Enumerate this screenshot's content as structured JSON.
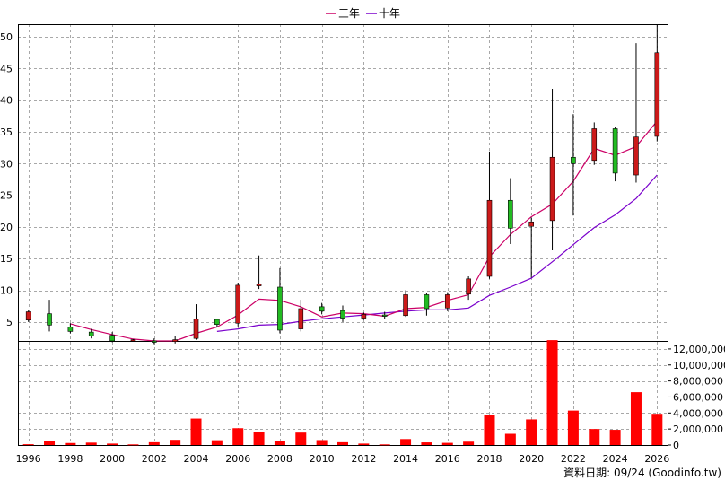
{
  "chart_data": {
    "type": "candlestick",
    "legend": [
      {
        "name": "三年",
        "color": "#cc0066"
      },
      {
        "name": "十年",
        "color": "#7a00cc"
      }
    ],
    "legend_position": "top",
    "footer": "資料日期: 09/24  (Goodinfo.tw)",
    "colors": {
      "up": "#cc1a1a",
      "down": "#22bb22",
      "volume": "#ff0000",
      "ma3": "#cc0066",
      "ma10": "#7a00cc"
    },
    "grid": true,
    "price_axis": {
      "range": [
        2,
        52
      ],
      "ticks": [
        5,
        10,
        15,
        20,
        25,
        30,
        35,
        40,
        45,
        50
      ]
    },
    "volume_axis": {
      "range": [
        0,
        13000000
      ],
      "ticks": [
        0,
        2000000,
        4000000,
        6000000,
        8000000,
        10000000,
        12000000
      ]
    },
    "x_ticks": [
      1996,
      1998,
      2000,
      2002,
      2004,
      2006,
      2008,
      2010,
      2012,
      2014,
      2016,
      2018,
      2020,
      2022,
      2024,
      2026
    ],
    "x_range": [
      1995.5,
      2026.5
    ],
    "candles": [
      {
        "year": 1996,
        "open": 5.3,
        "close": 6.6,
        "high": 6.8,
        "low": 5.0
      },
      {
        "year": 1997,
        "open": 6.3,
        "close": 4.5,
        "high": 8.5,
        "low": 3.5
      },
      {
        "year": 1998,
        "open": 4.2,
        "close": 3.5,
        "high": 4.8,
        "low": 3.2
      },
      {
        "year": 1999,
        "open": 3.4,
        "close": 2.8,
        "high": 3.9,
        "low": 2.4
      },
      {
        "year": 2000,
        "open": 2.9,
        "close": 2.0,
        "high": 3.4,
        "low": 1.8
      },
      {
        "year": 2001,
        "open": 2.1,
        "close": 2.2,
        "high": 2.3,
        "low": 2.0
      },
      {
        "year": 2002,
        "open": 2.0,
        "close": 1.9,
        "high": 2.4,
        "low": 1.5
      },
      {
        "year": 2003,
        "open": 1.9,
        "close": 2.2,
        "high": 2.8,
        "low": 1.6
      },
      {
        "year": 2004,
        "open": 2.4,
        "close": 5.5,
        "high": 7.8,
        "low": 2.2
      },
      {
        "year": 2005,
        "open": 5.4,
        "close": 4.6,
        "high": 5.5,
        "low": 4.2
      },
      {
        "year": 2006,
        "open": 4.8,
        "close": 10.8,
        "high": 11.2,
        "low": 4.3
      },
      {
        "year": 2007,
        "open": 10.7,
        "close": 11.0,
        "high": 15.5,
        "low": 10.2
      },
      {
        "year": 2008,
        "open": 10.5,
        "close": 3.7,
        "high": 13.5,
        "low": 3.2
      },
      {
        "year": 2009,
        "open": 3.9,
        "close": 7.1,
        "high": 8.5,
        "low": 3.5
      },
      {
        "year": 2010,
        "open": 7.4,
        "close": 6.7,
        "high": 8.0,
        "low": 6.2
      },
      {
        "year": 2011,
        "open": 6.8,
        "close": 5.6,
        "high": 7.6,
        "low": 5.0
      },
      {
        "year": 2012,
        "open": 5.6,
        "close": 6.2,
        "high": 6.5,
        "low": 5.3
      },
      {
        "year": 2013,
        "open": 6.1,
        "close": 6.0,
        "high": 6.6,
        "low": 5.5
      },
      {
        "year": 2014,
        "open": 6.0,
        "close": 9.3,
        "high": 10.0,
        "low": 5.8
      },
      {
        "year": 2015,
        "open": 9.3,
        "close": 7.1,
        "high": 9.6,
        "low": 6.0
      },
      {
        "year": 2016,
        "open": 7.2,
        "close": 9.3,
        "high": 9.7,
        "low": 6.7
      },
      {
        "year": 2017,
        "open": 9.4,
        "close": 11.8,
        "high": 12.2,
        "low": 8.5
      },
      {
        "year": 2018,
        "open": 12.2,
        "close": 24.2,
        "high": 31.9,
        "low": 11.8
      },
      {
        "year": 2019,
        "open": 24.2,
        "close": 19.8,
        "high": 27.7,
        "low": 17.3
      },
      {
        "year": 2020,
        "open": 20.1,
        "close": 20.8,
        "high": 21.5,
        "low": 12.0
      },
      {
        "year": 2021,
        "open": 21.0,
        "close": 31.0,
        "high": 41.8,
        "low": 16.3
      },
      {
        "year": 2022,
        "open": 31.0,
        "close": 30.0,
        "high": 37.8,
        "low": 21.8
      },
      {
        "year": 2023,
        "open": 30.5,
        "close": 35.5,
        "high": 36.5,
        "low": 29.8
      },
      {
        "year": 2024,
        "open": 35.5,
        "close": 28.5,
        "high": 35.8,
        "low": 27.2
      },
      {
        "year": 2025,
        "open": 28.2,
        "close": 34.2,
        "high": 49.0,
        "low": 27.0
      },
      {
        "year": 2026,
        "open": 34.3,
        "close": 47.5,
        "high": 52.0,
        "low": 33.5
      }
    ],
    "volumes": [
      {
        "year": 1996,
        "value": 100000
      },
      {
        "year": 1997,
        "value": 450000
      },
      {
        "year": 1998,
        "value": 250000
      },
      {
        "year": 1999,
        "value": 300000
      },
      {
        "year": 2000,
        "value": 180000
      },
      {
        "year": 2001,
        "value": 80000
      },
      {
        "year": 2002,
        "value": 350000
      },
      {
        "year": 2003,
        "value": 650000
      },
      {
        "year": 2004,
        "value": 3300000
      },
      {
        "year": 2005,
        "value": 600000
      },
      {
        "year": 2006,
        "value": 2100000
      },
      {
        "year": 2007,
        "value": 1650000
      },
      {
        "year": 2008,
        "value": 500000
      },
      {
        "year": 2009,
        "value": 1550000
      },
      {
        "year": 2010,
        "value": 620000
      },
      {
        "year": 2011,
        "value": 350000
      },
      {
        "year": 2012,
        "value": 180000
      },
      {
        "year": 2013,
        "value": 80000
      },
      {
        "year": 2014,
        "value": 750000
      },
      {
        "year": 2015,
        "value": 330000
      },
      {
        "year": 2016,
        "value": 270000
      },
      {
        "year": 2017,
        "value": 420000
      },
      {
        "year": 2018,
        "value": 3800000
      },
      {
        "year": 2019,
        "value": 1400000
      },
      {
        "year": 2020,
        "value": 3200000
      },
      {
        "year": 2021,
        "value": 13100000
      },
      {
        "year": 2022,
        "value": 4300000
      },
      {
        "year": 2023,
        "value": 2000000
      },
      {
        "year": 2024,
        "value": 1900000
      },
      {
        "year": 2025,
        "value": 6600000
      },
      {
        "year": 2026,
        "value": 3900000
      }
    ],
    "ma3": [
      {
        "year": 1998,
        "value": 4.7
      },
      {
        "year": 1999,
        "value": 3.8
      },
      {
        "year": 2000,
        "value": 3.0
      },
      {
        "year": 2001,
        "value": 2.3
      },
      {
        "year": 2002,
        "value": 2.0
      },
      {
        "year": 2003,
        "value": 2.0
      },
      {
        "year": 2004,
        "value": 3.2
      },
      {
        "year": 2005,
        "value": 4.2
      },
      {
        "year": 2006,
        "value": 6.1
      },
      {
        "year": 2007,
        "value": 8.6
      },
      {
        "year": 2008,
        "value": 8.4
      },
      {
        "year": 2009,
        "value": 7.4
      },
      {
        "year": 2010,
        "value": 5.8
      },
      {
        "year": 2011,
        "value": 6.4
      },
      {
        "year": 2012,
        "value": 6.3
      },
      {
        "year": 2013,
        "value": 5.9
      },
      {
        "year": 2014,
        "value": 7.1
      },
      {
        "year": 2015,
        "value": 7.3
      },
      {
        "year": 2016,
        "value": 8.4
      },
      {
        "year": 2017,
        "value": 9.3
      },
      {
        "year": 2018,
        "value": 15.3
      },
      {
        "year": 2019,
        "value": 18.8
      },
      {
        "year": 2020,
        "value": 21.6
      },
      {
        "year": 2021,
        "value": 23.6
      },
      {
        "year": 2022,
        "value": 27.2
      },
      {
        "year": 2023,
        "value": 32.4
      },
      {
        "year": 2024,
        "value": 31.3
      },
      {
        "year": 2025,
        "value": 32.7
      },
      {
        "year": 2026,
        "value": 36.7
      }
    ],
    "ma10": [
      {
        "year": 2005,
        "value": 3.5
      },
      {
        "year": 2006,
        "value": 3.9
      },
      {
        "year": 2007,
        "value": 4.5
      },
      {
        "year": 2008,
        "value": 4.6
      },
      {
        "year": 2009,
        "value": 5.1
      },
      {
        "year": 2010,
        "value": 5.5
      },
      {
        "year": 2011,
        "value": 5.8
      },
      {
        "year": 2012,
        "value": 6.1
      },
      {
        "year": 2013,
        "value": 6.4
      },
      {
        "year": 2014,
        "value": 6.7
      },
      {
        "year": 2015,
        "value": 6.9
      },
      {
        "year": 2016,
        "value": 6.9
      },
      {
        "year": 2017,
        "value": 7.2
      },
      {
        "year": 2018,
        "value": 9.2
      },
      {
        "year": 2019,
        "value": 10.5
      },
      {
        "year": 2020,
        "value": 11.9
      },
      {
        "year": 2021,
        "value": 14.5
      },
      {
        "year": 2022,
        "value": 17.2
      },
      {
        "year": 2023,
        "value": 19.9
      },
      {
        "year": 2024,
        "value": 21.9
      },
      {
        "year": 2025,
        "value": 24.5
      },
      {
        "year": 2026,
        "value": 28.2
      }
    ]
  }
}
